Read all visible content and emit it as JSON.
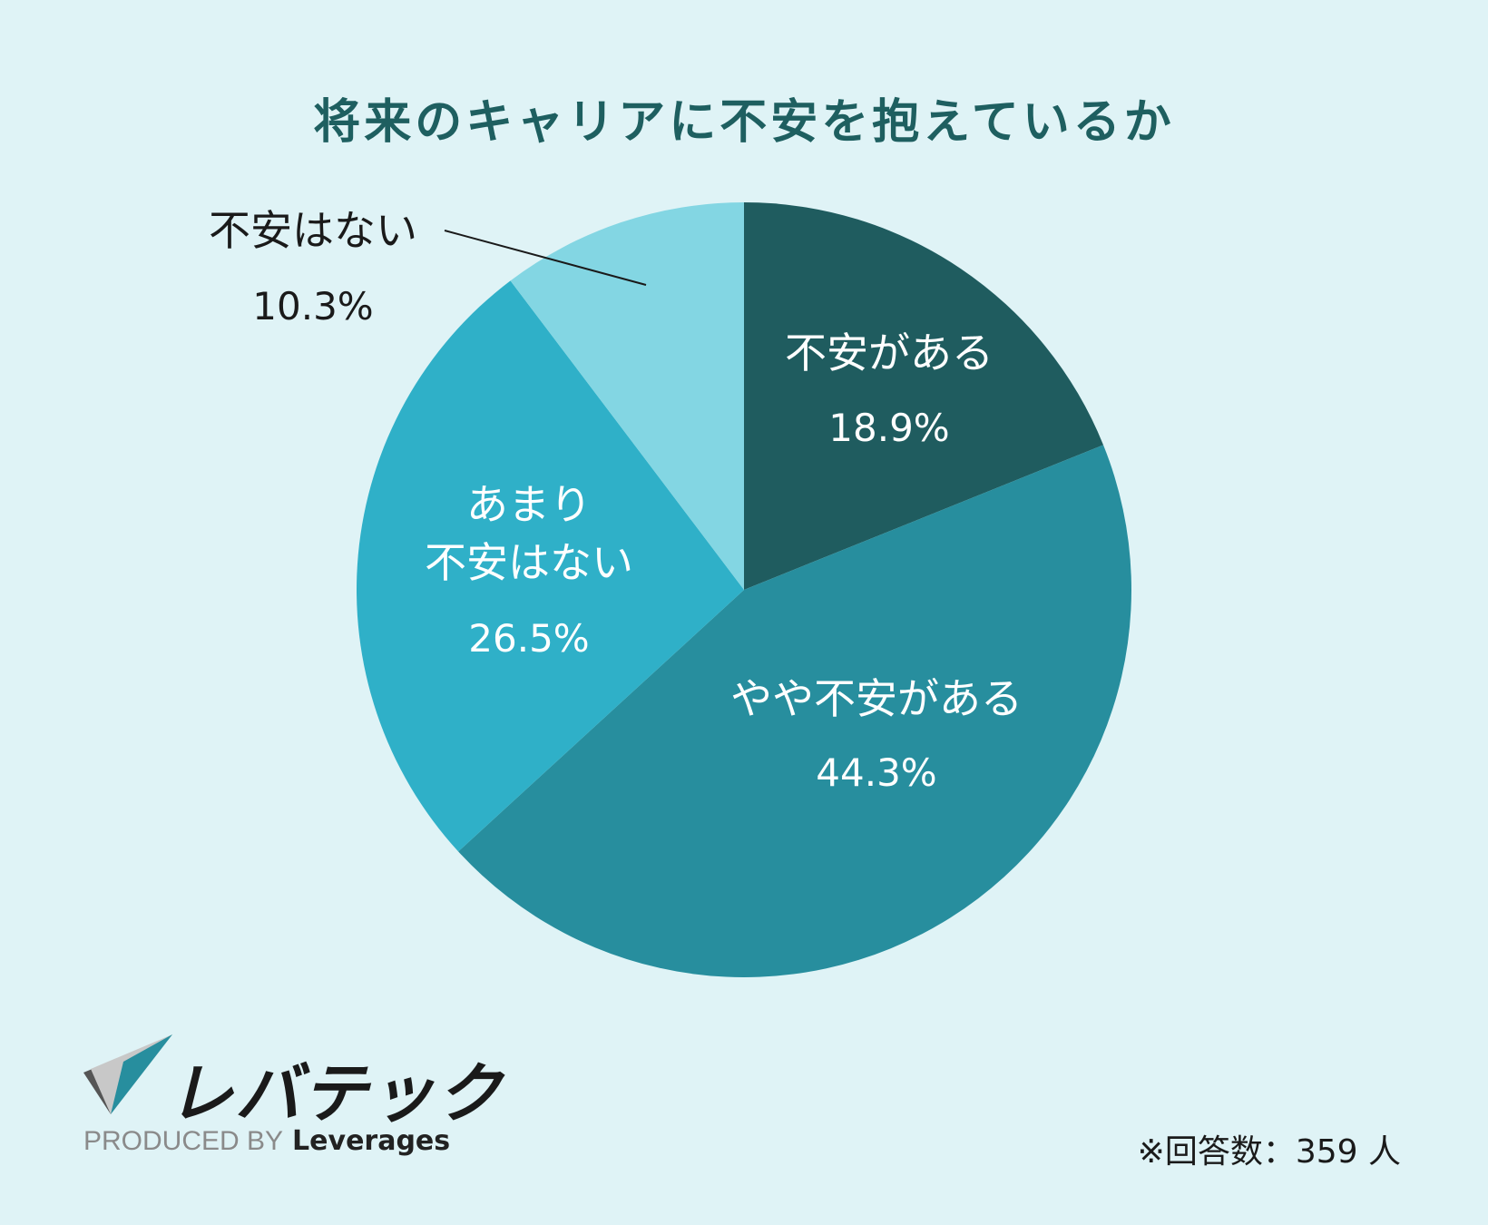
{
  "chart_data": {
    "type": "pie",
    "title": "将来のキャリアに不安を抱えているか",
    "slices": [
      {
        "label": "不安がある",
        "value": 18.9,
        "value_text": "18.9%",
        "color": "#1f5c5f",
        "text_color": "#ffffff"
      },
      {
        "label": "やや不安がある",
        "value": 44.3,
        "value_text": "44.3%",
        "color": "#278e9e",
        "text_color": "#ffffff"
      },
      {
        "label_lines": [
          "あまり",
          "不安はない"
        ],
        "value": 26.5,
        "value_text": "26.5%",
        "color": "#2fb0c8",
        "text_color": "#ffffff"
      },
      {
        "label": "不安はない",
        "value": 10.3,
        "value_text": "10.3%",
        "color": "#83d6e3",
        "text_color": "#1a1a1a"
      }
    ]
  },
  "brand": {
    "name": "レバテック",
    "produced_by": "PRODUCED BY",
    "company": "Leverages",
    "colors": {
      "dark": "#555555",
      "teal": "#278e9e",
      "light": "#c8c8c8"
    }
  },
  "footnote": "※回答数：359 人"
}
